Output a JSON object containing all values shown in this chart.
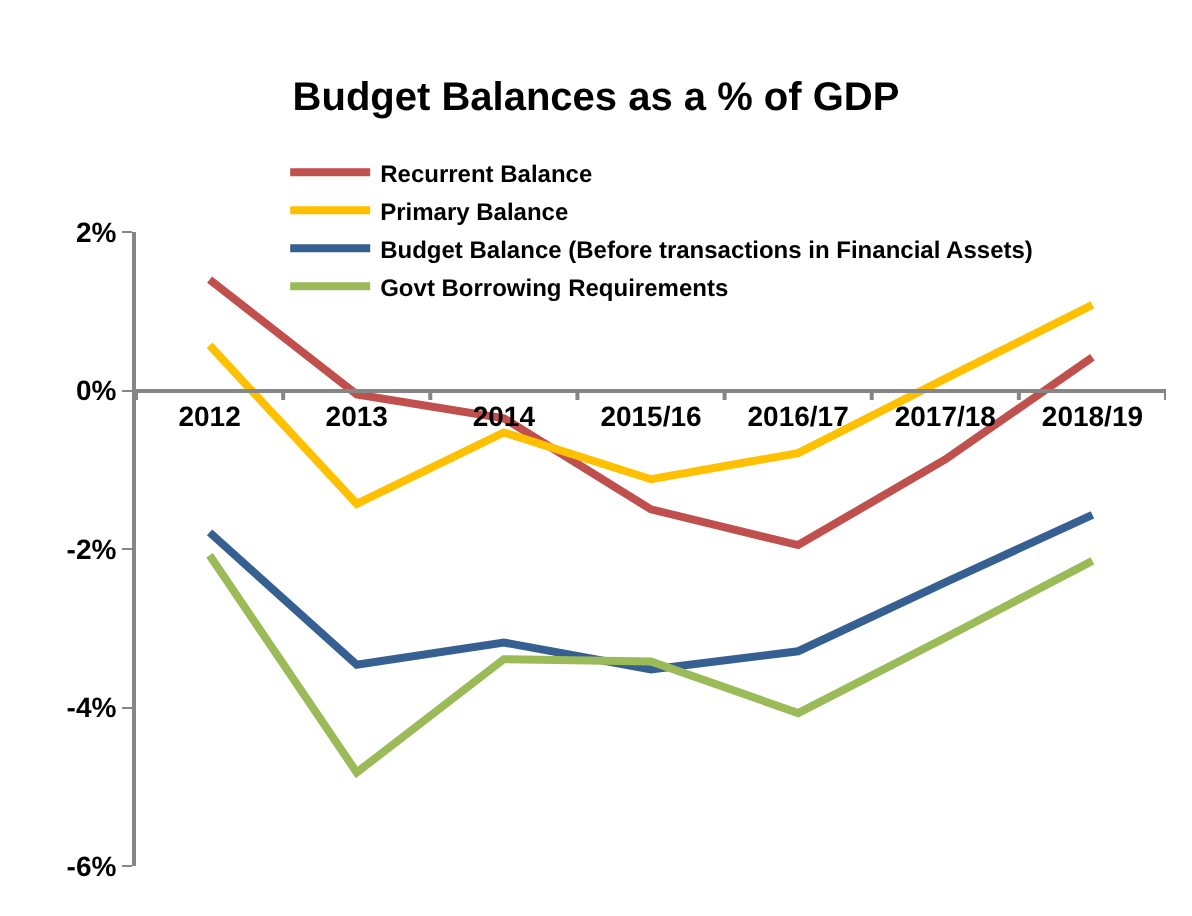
{
  "chart_data": {
    "type": "line",
    "title": "Budget Balances as a % of GDP",
    "categories": [
      "2012",
      "2013",
      "2014",
      "2015/16",
      "2016/17",
      "2017/18",
      "2018/19"
    ],
    "series": [
      {
        "name": "Recurrent Balance",
        "color": "#c0504d",
        "values": [
          1.4,
          -0.05,
          -0.35,
          -1.5,
          -1.95,
          -0.87,
          0.42
        ]
      },
      {
        "name": "Primary Balance",
        "color": "#ffc000",
        "values": [
          0.57,
          -1.43,
          -0.53,
          -1.12,
          -0.79,
          0.15,
          1.08
        ]
      },
      {
        "name": "Budget Balance (Before transactions in Financial Assets)",
        "color": "#376092",
        "values": [
          -1.79,
          -3.46,
          -3.18,
          -3.52,
          -3.29,
          -2.42,
          -1.57
        ]
      },
      {
        "name": "Govt Borrowing Requirements",
        "color": "#9bbb59",
        "values": [
          -2.08,
          -4.82,
          -3.39,
          -3.42,
          -4.07,
          -3.12,
          -2.15
        ]
      }
    ],
    "ylim": [
      -6,
      2
    ],
    "yticks": [
      {
        "value": -6,
        "label": "-6%"
      },
      {
        "value": -4,
        "label": "-4%"
      },
      {
        "value": -2,
        "label": "-2%"
      },
      {
        "value": 0,
        "label": "0%"
      },
      {
        "value": 2,
        "label": "2%"
      }
    ],
    "legend": "top left",
    "marker": "none",
    "line_style": "solid"
  }
}
